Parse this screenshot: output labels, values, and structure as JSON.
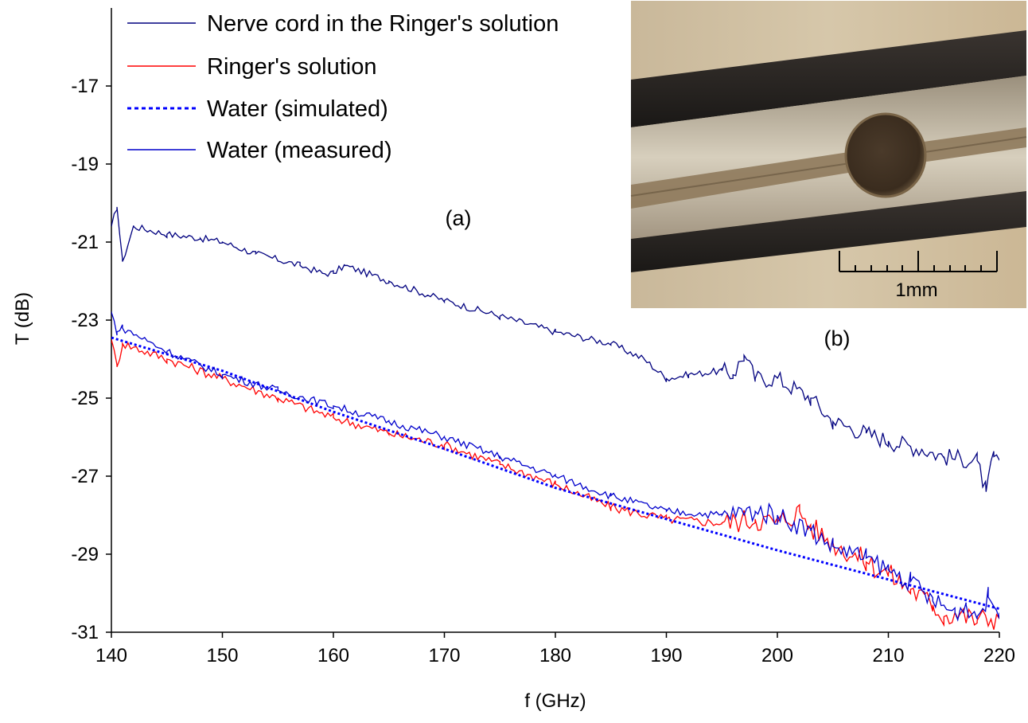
{
  "chart_data": {
    "type": "line",
    "xlabel": "f (GHz)",
    "ylabel": "T (dB)",
    "xlim": [
      140,
      220
    ],
    "ylim": [
      -31,
      -15
    ],
    "x_ticks": [
      "140",
      "150",
      "160",
      "170",
      "180",
      "190",
      "200",
      "210",
      "220"
    ],
    "y_ticks": [
      "-17",
      "-19",
      "-21",
      "-23",
      "-25",
      "-27",
      "-29",
      "-31"
    ],
    "grid": false,
    "legend_position": "top-left",
    "series": [
      {
        "name": "Nerve cord in the Ringer's solution",
        "color": "#00007f",
        "style": "solid",
        "x": [
          140,
          140.5,
          141,
          142,
          145,
          148,
          150,
          153,
          157,
          159,
          160,
          161,
          165,
          170,
          175,
          180,
          185,
          188,
          190,
          192,
          195,
          196,
          197,
          198,
          200,
          203,
          205,
          208,
          210,
          213,
          215,
          218,
          218.8,
          219.5,
          220
        ],
        "values": [
          -20.6,
          -20.1,
          -21.5,
          -20.6,
          -20.8,
          -20.9,
          -21.0,
          -21.3,
          -21.6,
          -21.8,
          -21.8,
          -21.6,
          -22.0,
          -22.5,
          -22.9,
          -23.3,
          -23.6,
          -24.0,
          -24.5,
          -24.4,
          -24.3,
          -24.4,
          -23.9,
          -24.5,
          -24.5,
          -25.0,
          -25.6,
          -25.9,
          -26.1,
          -26.3,
          -26.5,
          -26.6,
          -27.4,
          -26.5,
          -26.6
        ]
      },
      {
        "name": "Ringer's solution",
        "color": "#ff0000",
        "style": "solid",
        "x": [
          140,
          140.5,
          141,
          145,
          150,
          155,
          160,
          165,
          170,
          175,
          180,
          185,
          190,
          195,
          198,
          200,
          202,
          203,
          205,
          208,
          210,
          212,
          214,
          215,
          216,
          218,
          220
        ],
        "values": [
          -23.5,
          -24.2,
          -23.6,
          -24.0,
          -24.5,
          -25.0,
          -25.5,
          -25.9,
          -26.2,
          -26.7,
          -27.2,
          -27.8,
          -28.1,
          -28.2,
          -28.1,
          -28.2,
          -27.9,
          -28.3,
          -28.7,
          -29.2,
          -29.5,
          -29.9,
          -30.3,
          -30.6,
          -30.5,
          -30.7,
          -30.6
        ]
      },
      {
        "name": "Water (simulated)",
        "color": "#0000ff",
        "style": "dotted",
        "x": [
          140,
          150,
          160,
          170,
          180,
          190,
          200,
          210,
          220
        ],
        "values": [
          -23.45,
          -24.3,
          -25.35,
          -26.3,
          -27.3,
          -28.1,
          -28.9,
          -29.65,
          -30.4
        ]
      },
      {
        "name": "Water (measured)",
        "color": "#0000cc",
        "style": "solid",
        "x": [
          140,
          140.5,
          141,
          145,
          150,
          155,
          160,
          165,
          170,
          175,
          180,
          185,
          190,
          195,
          198,
          200,
          203,
          205,
          208,
          210,
          212,
          214,
          216,
          217,
          218,
          219,
          220
        ],
        "values": [
          -22.8,
          -23.3,
          -23.2,
          -23.8,
          -24.4,
          -24.8,
          -25.2,
          -25.6,
          -26.0,
          -26.5,
          -27.0,
          -27.5,
          -27.9,
          -28.0,
          -27.9,
          -28.0,
          -28.4,
          -28.8,
          -29.1,
          -29.4,
          -29.7,
          -30.2,
          -30.5,
          -30.3,
          -30.6,
          -30.1,
          -30.5
        ]
      }
    ]
  },
  "annotations": {
    "panel_a": "(a)",
    "panel_b": "(b)",
    "scale_bar_label": "1mm"
  }
}
